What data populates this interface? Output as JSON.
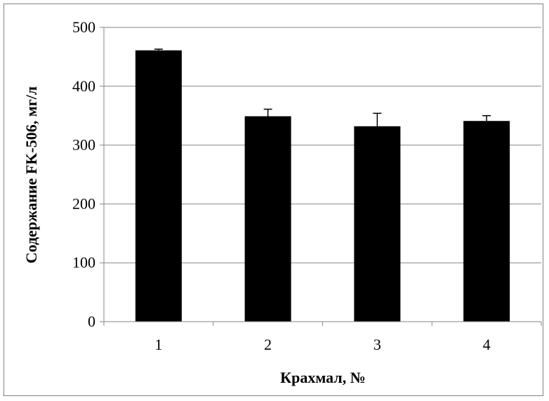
{
  "chart_data": {
    "type": "bar",
    "categories": [
      "1",
      "2",
      "3",
      "4"
    ],
    "values": [
      461,
      349,
      332,
      341
    ],
    "errors": [
      2,
      12,
      22,
      9
    ],
    "xlabel": "Крахмал, №",
    "ylabel": "Содержание FK-506, мг/л",
    "ylim": [
      0,
      500
    ],
    "yticks": [
      "0",
      "100",
      "200",
      "300",
      "400",
      "500"
    ],
    "grid": true,
    "legend": false,
    "bar_color": "#000000",
    "grid_color": "#868686"
  }
}
